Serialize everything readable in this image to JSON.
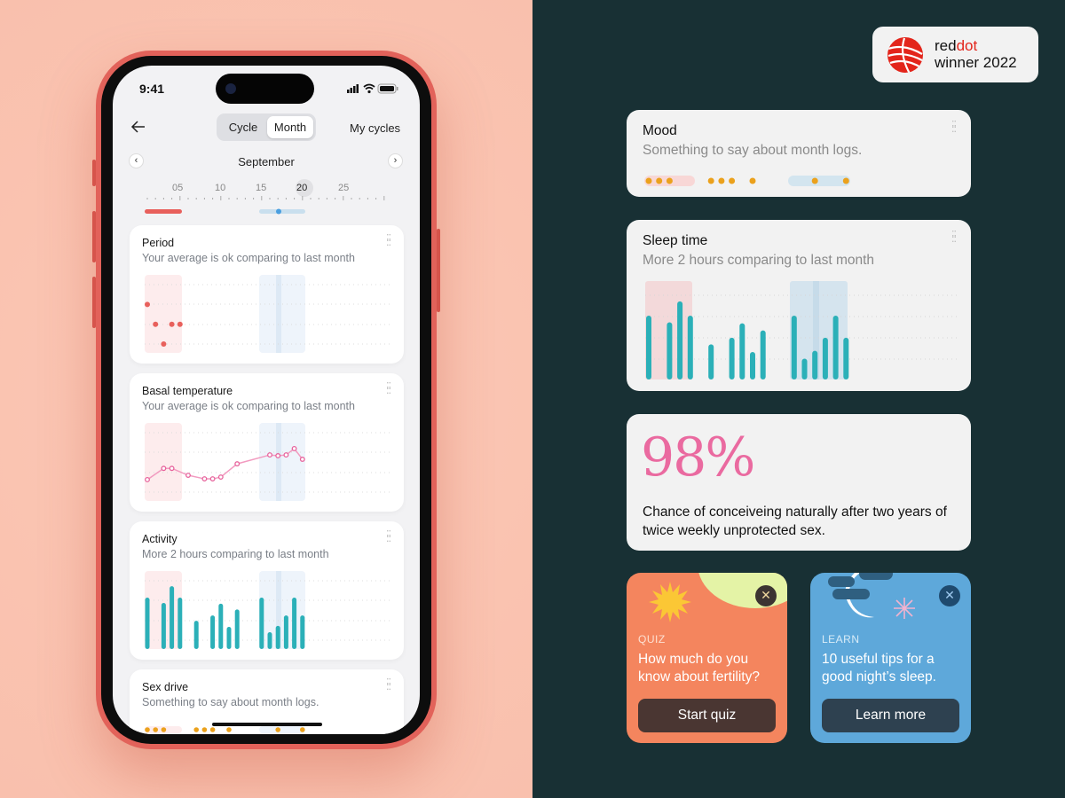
{
  "status_bar": {
    "time": "9:41"
  },
  "header": {
    "back_icon": "arrow-left-icon",
    "segments": [
      "Cycle",
      "Month"
    ],
    "selected_segment": "Month",
    "my_cycles": "My cycles"
  },
  "month_nav": {
    "month": "September",
    "prev": "‹",
    "next": "›",
    "tick_labels": [
      "05",
      "10",
      "15",
      "20",
      "25"
    ],
    "selected_day": "20"
  },
  "colors": {
    "period": "#e8605c",
    "fertile": "#c9dfee",
    "teal": "#2bb0b8",
    "pink": "#e7639c",
    "orange": "#eba11c"
  },
  "cards": {
    "period": {
      "title": "Period",
      "subtitle": "Your average is ok comparing to last month",
      "points": [
        [
          1,
          2
        ],
        [
          2,
          1
        ],
        [
          3,
          0
        ],
        [
          4,
          1
        ],
        [
          5,
          1
        ]
      ]
    },
    "basal": {
      "title": "Basal temperature",
      "subtitle": "Your average is ok comparing to last month",
      "points": [
        [
          1,
          0.63
        ],
        [
          3,
          1.2
        ],
        [
          4,
          1.2
        ],
        [
          6,
          0.85
        ],
        [
          8,
          0.67
        ],
        [
          9,
          0.67
        ],
        [
          10,
          0.76
        ],
        [
          12,
          1.43
        ],
        [
          16,
          1.88
        ],
        [
          17,
          1.84
        ],
        [
          18,
          1.88
        ],
        [
          19,
          2.2
        ],
        [
          20,
          1.66
        ]
      ]
    },
    "activity": {
      "title": "Activity",
      "subtitle": "More 2 hours comparing to last month",
      "bars": [
        [
          1,
          2.6
        ],
        [
          3,
          2.33
        ],
        [
          4,
          3.18
        ],
        [
          5,
          2.6
        ],
        [
          7,
          1.43
        ],
        [
          9,
          1.7
        ],
        [
          10,
          2.29
        ],
        [
          11,
          1.12
        ],
        [
          12,
          2.0
        ],
        [
          15,
          2.6
        ],
        [
          16,
          0.85
        ],
        [
          17,
          1.17
        ],
        [
          18,
          1.7
        ],
        [
          19,
          2.6
        ],
        [
          20,
          1.7
        ]
      ]
    },
    "sex_drive": {
      "title": "Sex drive",
      "subtitle": "Something to say about month logs.",
      "days": [
        1,
        2,
        3,
        7,
        8,
        9,
        11,
        17,
        20
      ]
    }
  },
  "award": {
    "brand_a": "red",
    "brand_b": "dot",
    "line2": "winner 2022"
  },
  "mood": {
    "title": "Mood",
    "subtitle": "Something to say about month logs.",
    "days": [
      1,
      2,
      3,
      7,
      8,
      9,
      11,
      17,
      20
    ]
  },
  "sleep": {
    "title": "Sleep time",
    "subtitle": "More 2 hours comparing to last month",
    "bars": [
      [
        1,
        2.6
      ],
      [
        3,
        2.33
      ],
      [
        4,
        3.18
      ],
      [
        5,
        2.6
      ],
      [
        7,
        1.43
      ],
      [
        9,
        1.7
      ],
      [
        10,
        2.29
      ],
      [
        11,
        1.12
      ],
      [
        12,
        2.0
      ],
      [
        15,
        2.6
      ],
      [
        16,
        0.85
      ],
      [
        17,
        1.17
      ],
      [
        18,
        1.7
      ],
      [
        19,
        2.6
      ],
      [
        20,
        1.7
      ]
    ]
  },
  "stat": {
    "value": "98%",
    "text": "Chance of conceiveing naturally after two years of twice weekly unprotected sex."
  },
  "quiz": {
    "tag": "QUIZ",
    "text": "How much do you know about fertility?",
    "button": "Start quiz",
    "close": "✕"
  },
  "learn": {
    "tag": "LEARN",
    "text": "10 useful tips for a good night’s sleep.",
    "button": "Learn more",
    "close": "✕"
  }
}
